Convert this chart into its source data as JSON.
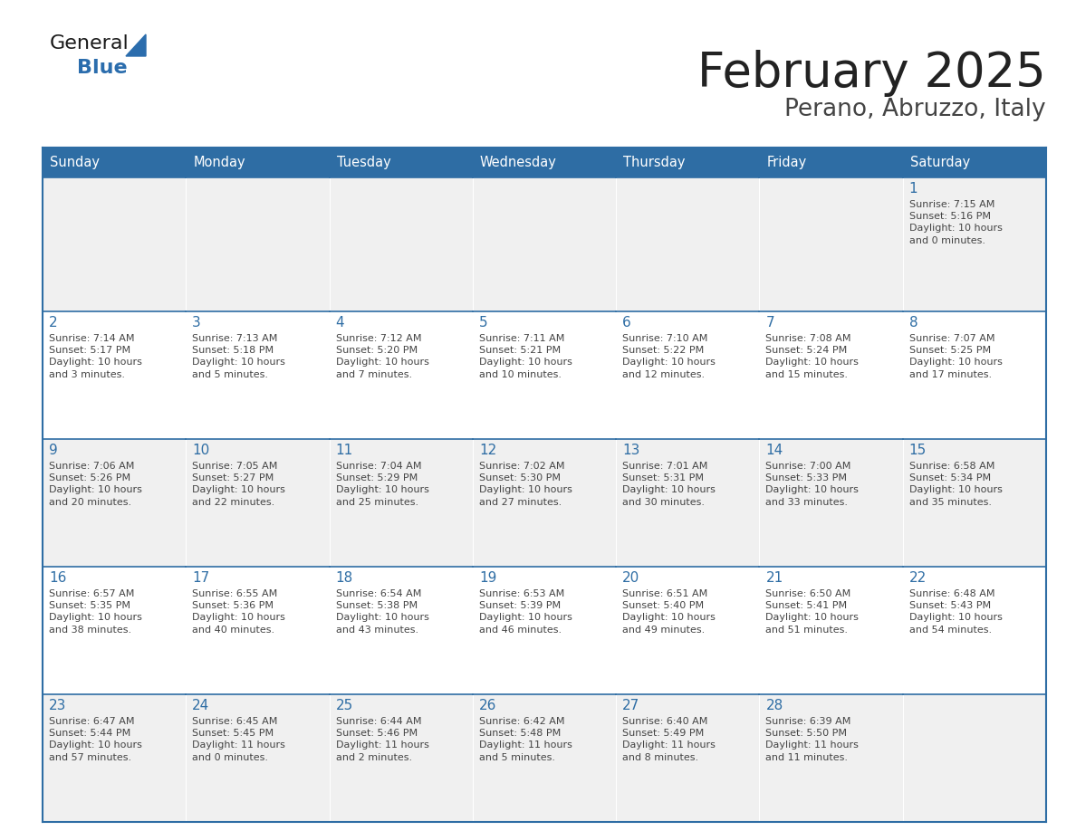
{
  "title": "February 2025",
  "subtitle": "Perano, Abruzzo, Italy",
  "header_bg": "#2E6DA4",
  "header_text_color": "#FFFFFF",
  "cell_bg_odd": "#F0F0F0",
  "cell_bg_even": "#FFFFFF",
  "border_color": "#2E6DA4",
  "text_color": "#444444",
  "day_number_color": "#2E6DA4",
  "days_of_week": [
    "Sunday",
    "Monday",
    "Tuesday",
    "Wednesday",
    "Thursday",
    "Friday",
    "Saturday"
  ],
  "logo_general_color": "#1a1a1a",
  "logo_blue_color": "#2B6DAD",
  "calendar_data": [
    [
      null,
      null,
      null,
      null,
      null,
      null,
      {
        "day": 1,
        "sunrise": "7:15 AM",
        "sunset": "5:16 PM",
        "daylight": "10 hours\nand 0 minutes."
      }
    ],
    [
      {
        "day": 2,
        "sunrise": "7:14 AM",
        "sunset": "5:17 PM",
        "daylight": "10 hours\nand 3 minutes."
      },
      {
        "day": 3,
        "sunrise": "7:13 AM",
        "sunset": "5:18 PM",
        "daylight": "10 hours\nand 5 minutes."
      },
      {
        "day": 4,
        "sunrise": "7:12 AM",
        "sunset": "5:20 PM",
        "daylight": "10 hours\nand 7 minutes."
      },
      {
        "day": 5,
        "sunrise": "7:11 AM",
        "sunset": "5:21 PM",
        "daylight": "10 hours\nand 10 minutes."
      },
      {
        "day": 6,
        "sunrise": "7:10 AM",
        "sunset": "5:22 PM",
        "daylight": "10 hours\nand 12 minutes."
      },
      {
        "day": 7,
        "sunrise": "7:08 AM",
        "sunset": "5:24 PM",
        "daylight": "10 hours\nand 15 minutes."
      },
      {
        "day": 8,
        "sunrise": "7:07 AM",
        "sunset": "5:25 PM",
        "daylight": "10 hours\nand 17 minutes."
      }
    ],
    [
      {
        "day": 9,
        "sunrise": "7:06 AM",
        "sunset": "5:26 PM",
        "daylight": "10 hours\nand 20 minutes."
      },
      {
        "day": 10,
        "sunrise": "7:05 AM",
        "sunset": "5:27 PM",
        "daylight": "10 hours\nand 22 minutes."
      },
      {
        "day": 11,
        "sunrise": "7:04 AM",
        "sunset": "5:29 PM",
        "daylight": "10 hours\nand 25 minutes."
      },
      {
        "day": 12,
        "sunrise": "7:02 AM",
        "sunset": "5:30 PM",
        "daylight": "10 hours\nand 27 minutes."
      },
      {
        "day": 13,
        "sunrise": "7:01 AM",
        "sunset": "5:31 PM",
        "daylight": "10 hours\nand 30 minutes."
      },
      {
        "day": 14,
        "sunrise": "7:00 AM",
        "sunset": "5:33 PM",
        "daylight": "10 hours\nand 33 minutes."
      },
      {
        "day": 15,
        "sunrise": "6:58 AM",
        "sunset": "5:34 PM",
        "daylight": "10 hours\nand 35 minutes."
      }
    ],
    [
      {
        "day": 16,
        "sunrise": "6:57 AM",
        "sunset": "5:35 PM",
        "daylight": "10 hours\nand 38 minutes."
      },
      {
        "day": 17,
        "sunrise": "6:55 AM",
        "sunset": "5:36 PM",
        "daylight": "10 hours\nand 40 minutes."
      },
      {
        "day": 18,
        "sunrise": "6:54 AM",
        "sunset": "5:38 PM",
        "daylight": "10 hours\nand 43 minutes."
      },
      {
        "day": 19,
        "sunrise": "6:53 AM",
        "sunset": "5:39 PM",
        "daylight": "10 hours\nand 46 minutes."
      },
      {
        "day": 20,
        "sunrise": "6:51 AM",
        "sunset": "5:40 PM",
        "daylight": "10 hours\nand 49 minutes."
      },
      {
        "day": 21,
        "sunrise": "6:50 AM",
        "sunset": "5:41 PM",
        "daylight": "10 hours\nand 51 minutes."
      },
      {
        "day": 22,
        "sunrise": "6:48 AM",
        "sunset": "5:43 PM",
        "daylight": "10 hours\nand 54 minutes."
      }
    ],
    [
      {
        "day": 23,
        "sunrise": "6:47 AM",
        "sunset": "5:44 PM",
        "daylight": "10 hours\nand 57 minutes."
      },
      {
        "day": 24,
        "sunrise": "6:45 AM",
        "sunset": "5:45 PM",
        "daylight": "11 hours\nand 0 minutes."
      },
      {
        "day": 25,
        "sunrise": "6:44 AM",
        "sunset": "5:46 PM",
        "daylight": "11 hours\nand 2 minutes."
      },
      {
        "day": 26,
        "sunrise": "6:42 AM",
        "sunset": "5:48 PM",
        "daylight": "11 hours\nand 5 minutes."
      },
      {
        "day": 27,
        "sunrise": "6:40 AM",
        "sunset": "5:49 PM",
        "daylight": "11 hours\nand 8 minutes."
      },
      {
        "day": 28,
        "sunrise": "6:39 AM",
        "sunset": "5:50 PM",
        "daylight": "11 hours\nand 11 minutes."
      },
      null
    ]
  ]
}
